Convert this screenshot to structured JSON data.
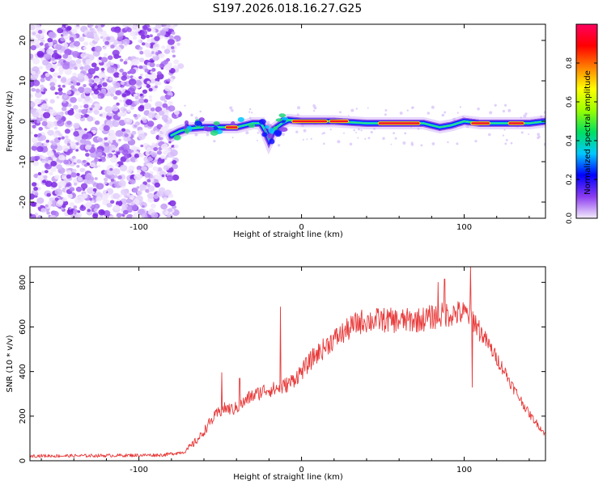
{
  "title": "S197.2026.018.16.27.G25",
  "chart_data": [
    {
      "type": "heatmap",
      "xlabel": "Height of straight line (km)",
      "ylabel": "Frequency (Hz)",
      "xlim": [
        -167,
        150
      ],
      "ylim": [
        -24,
        24
      ],
      "xticks": [
        -100,
        0,
        100
      ],
      "yticks": [
        -20,
        -10,
        0,
        10,
        20
      ],
      "colorbar": {
        "label": "Normalized spectral amplitude",
        "range": [
          0,
          1
        ],
        "ticks": [
          "0.0",
          "0.2",
          "0.4",
          "0.6",
          "0.8"
        ],
        "colors": [
          "#f4ecfc",
          "#8c3cf0",
          "#0000ff",
          "#00c8ff",
          "#00e060",
          "#9aff00",
          "#ffff00",
          "#ff8000",
          "#ff0000",
          "#ff0060"
        ]
      },
      "noise_region": {
        "x_end": -77,
        "freq_range": [
          -24,
          24
        ]
      },
      "ridge": [
        {
          "x": -80,
          "f": -3.5
        },
        {
          "x": -75,
          "f": -2.5
        },
        {
          "x": -70,
          "f": -1.8
        },
        {
          "x": -60,
          "f": -1.5
        },
        {
          "x": -50,
          "f": -1.5
        },
        {
          "x": -40,
          "f": -1.5
        },
        {
          "x": -30,
          "f": -0.5
        },
        {
          "x": -25,
          "f": -0.5
        },
        {
          "x": -22,
          "f": -2.5
        },
        {
          "x": -20,
          "f": -4.5
        },
        {
          "x": -17,
          "f": -2.0
        },
        {
          "x": -12,
          "f": -0.5
        },
        {
          "x": -8,
          "f": 0.3
        },
        {
          "x": 0,
          "f": 0
        },
        {
          "x": 20,
          "f": 0
        },
        {
          "x": 40,
          "f": -0.5
        },
        {
          "x": 60,
          "f": -0.5
        },
        {
          "x": 75,
          "f": -0.5
        },
        {
          "x": 85,
          "f": -1.5
        },
        {
          "x": 92,
          "f": -1.0
        },
        {
          "x": 100,
          "f": 0
        },
        {
          "x": 110,
          "f": -0.5
        },
        {
          "x": 125,
          "f": -0.5
        },
        {
          "x": 140,
          "f": -0.5
        },
        {
          "x": 150,
          "f": 0
        }
      ],
      "hot_segments": [
        {
          "x0": -5,
          "x1": 15,
          "f": 0
        },
        {
          "x0": 18,
          "x1": 28,
          "f": 0
        },
        {
          "x0": 48,
          "x1": 72,
          "f": -0.5
        },
        {
          "x0": -46,
          "x1": -40,
          "f": -1.5
        },
        {
          "x0": 105,
          "x1": 115,
          "f": -0.5
        },
        {
          "x0": 128,
          "x1": 136,
          "f": -0.5
        }
      ]
    },
    {
      "type": "line",
      "xlabel": "Height of straight line (km)",
      "ylabel": "SNR (10 * v/v)",
      "xlim": [
        -167,
        150
      ],
      "ylim": [
        0,
        870
      ],
      "xticks": [
        -100,
        0,
        100
      ],
      "yticks": [
        0,
        200,
        400,
        600,
        800
      ],
      "series": [
        {
          "name": "SNR",
          "color": "#e83a3a",
          "x": [
            -167,
            -140,
            -110,
            -85,
            -72,
            -68,
            -62,
            -57,
            -52,
            -47,
            -42,
            -37,
            -32,
            -27,
            -22,
            -17,
            -12,
            -7,
            -2,
            3,
            8,
            13,
            18,
            23,
            28,
            33,
            38,
            43,
            48,
            53,
            58,
            63,
            68,
            73,
            78,
            83,
            88,
            93,
            98,
            103,
            106,
            110,
            115,
            120,
            125,
            130,
            135,
            140,
            145,
            150
          ],
          "values": [
            22,
            22,
            24,
            26,
            40,
            65,
            110,
            165,
            210,
            235,
            230,
            250,
            285,
            300,
            320,
            320,
            330,
            350,
            385,
            425,
            470,
            500,
            535,
            560,
            585,
            612,
            628,
            628,
            632,
            630,
            628,
            628,
            630,
            632,
            640,
            648,
            655,
            660,
            662,
            655,
            630,
            580,
            520,
            460,
            400,
            330,
            270,
            210,
            165,
            118
          ]
        }
      ],
      "spikes": [
        {
          "x": -49,
          "v": 395
        },
        {
          "x": -38,
          "v": 370
        },
        {
          "x": -13,
          "v": 690
        },
        {
          "x": 84,
          "v": 800
        },
        {
          "x": 88,
          "v": 815
        },
        {
          "x": 104,
          "v": 870
        },
        {
          "x": 105,
          "v": 330
        }
      ]
    }
  ]
}
